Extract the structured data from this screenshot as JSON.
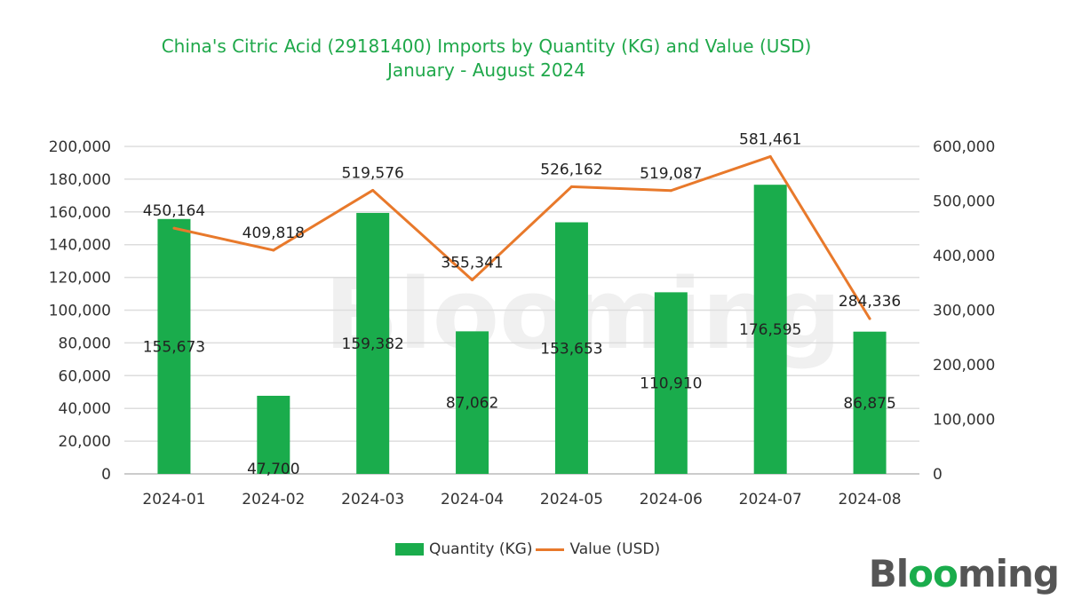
{
  "chart_data": {
    "type": "bar+line",
    "title": "China's Citric Acid (29181400) Imports by Quantity (KG) and Value (USD)",
    "subtitle": "January - August 2024",
    "categories": [
      "2024-01",
      "2024-02",
      "2024-03",
      "2024-04",
      "2024-05",
      "2024-06",
      "2024-07",
      "2024-08"
    ],
    "series": [
      {
        "name": "Quantity (KG)",
        "type": "bar",
        "axis": "left",
        "color": "#1aac4c",
        "values": [
          155673,
          47700,
          159382,
          87062,
          153653,
          110910,
          176595,
          86875
        ],
        "labels": [
          "155,673",
          "47,700",
          "159,382",
          "87,062",
          "153,653",
          "110,910",
          "176,595",
          "86,875"
        ]
      },
      {
        "name": "Value (USD)",
        "type": "line",
        "axis": "right",
        "color": "#e8792b",
        "values": [
          450164,
          409818,
          519576,
          355341,
          526162,
          519087,
          581461,
          284336
        ],
        "labels": [
          "450,164",
          "409,818",
          "519,576",
          "355,341",
          "526,162",
          "519,087",
          "581,461",
          "284,336"
        ]
      }
    ],
    "ylim_left": [
      0,
      200000
    ],
    "ylim_right": [
      0,
      600000
    ],
    "yticks_left": [
      "0",
      "20,000",
      "40,000",
      "60,000",
      "80,000",
      "100,000",
      "120,000",
      "140,000",
      "160,000",
      "180,000",
      "200,000"
    ],
    "yticks_right": [
      "0",
      "100,000",
      "200,000",
      "300,000",
      "400,000",
      "500,000",
      "600,000"
    ],
    "grid": true,
    "legend": "bottom"
  },
  "branding": {
    "logo": "Blooming",
    "watermark": "Blooming"
  }
}
